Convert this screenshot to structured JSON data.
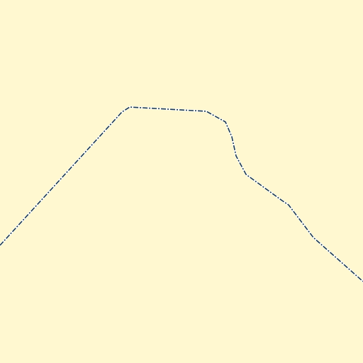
{
  "map": {
    "background_color": "#fff8d0",
    "boundary": {
      "feature": "dashed-boundary-line",
      "style": "dash-dot",
      "stroke_color": "#1d3a4f",
      "underlay_color": "#ffffff"
    }
  }
}
